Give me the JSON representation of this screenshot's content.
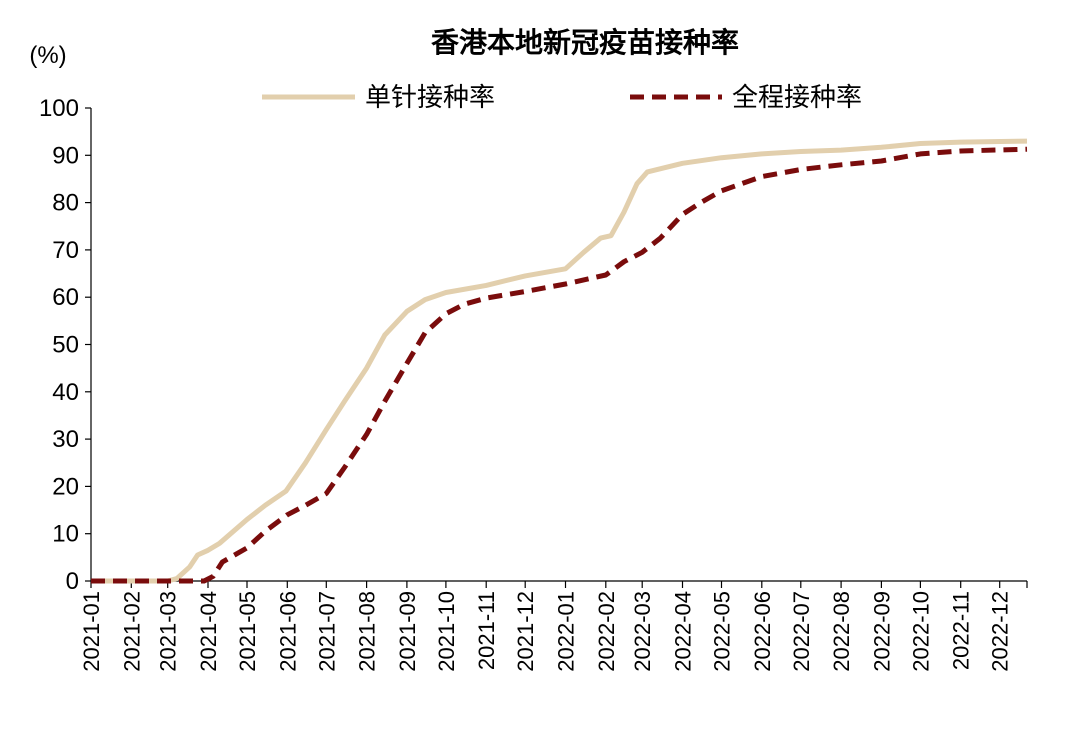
{
  "chart_data": {
    "type": "line",
    "title": "香港本地新冠疫苗接种率",
    "ylabel": "(%)",
    "xlabel": "",
    "ylim": [
      0,
      100
    ],
    "yticks": [
      "0",
      "10",
      "20",
      "30",
      "40",
      "50",
      "60",
      "70",
      "80",
      "90",
      "100"
    ],
    "categories": [
      "2021-01",
      "2021-02",
      "2021-03",
      "2021-04",
      "2021-05",
      "2021-06",
      "2021-07",
      "2021-08",
      "2021-09",
      "2021-10",
      "2021-11",
      "2021-12",
      "2022-01",
      "2022-02",
      "2022-03",
      "2022-04",
      "2022-05",
      "2022-06",
      "2022-07",
      "2022-08",
      "2022-09",
      "2022-10",
      "2022-11",
      "2022-12"
    ],
    "grid": false,
    "legend_position": "top",
    "series": [
      {
        "name": "单针接种率",
        "color": "#E2CFAD",
        "style": "solid",
        "points": [
          [
            "2021-01-01",
            0
          ],
          [
            "2021-02-01",
            0
          ],
          [
            "2021-03-01",
            0
          ],
          [
            "2021-03-08",
            0.5
          ],
          [
            "2021-03-18",
            3
          ],
          [
            "2021-03-24",
            5.5
          ],
          [
            "2021-04-01",
            6.5
          ],
          [
            "2021-04-10",
            8
          ],
          [
            "2021-05-01",
            13
          ],
          [
            "2021-05-15",
            16
          ],
          [
            "2021-05-31",
            19
          ],
          [
            "2021-06-15",
            25
          ],
          [
            "2021-07-01",
            32
          ],
          [
            "2021-07-15",
            38
          ],
          [
            "2021-08-01",
            45
          ],
          [
            "2021-08-15",
            52
          ],
          [
            "2021-09-01",
            57
          ],
          [
            "2021-09-15",
            59.5
          ],
          [
            "2021-10-01",
            61
          ],
          [
            "2021-11-01",
            62.5
          ],
          [
            "2021-12-01",
            64.5
          ],
          [
            "2022-01-01",
            66
          ],
          [
            "2022-01-15",
            69.5
          ],
          [
            "2022-01-28",
            72.5
          ],
          [
            "2022-02-05",
            73
          ],
          [
            "2022-02-15",
            78
          ],
          [
            "2022-02-25",
            84
          ],
          [
            "2022-03-05",
            86.5
          ],
          [
            "2022-04-01",
            88.3
          ],
          [
            "2022-05-01",
            89.5
          ],
          [
            "2022-06-01",
            90.3
          ],
          [
            "2022-07-01",
            90.8
          ],
          [
            "2022-08-01",
            91.1
          ],
          [
            "2022-09-01",
            91.7
          ],
          [
            "2022-10-01",
            92.5
          ],
          [
            "2022-11-01",
            92.8
          ],
          [
            "2022-12-22",
            93
          ]
        ]
      },
      {
        "name": "全程接种率",
        "color": "#7A0C0C",
        "style": "dashed",
        "points": [
          [
            "2021-01-01",
            0
          ],
          [
            "2021-02-01",
            0
          ],
          [
            "2021-03-01",
            0
          ],
          [
            "2021-03-29",
            0
          ],
          [
            "2021-04-05",
            1
          ],
          [
            "2021-04-12",
            4
          ],
          [
            "2021-05-01",
            7
          ],
          [
            "2021-05-15",
            10.5
          ],
          [
            "2021-06-01",
            14
          ],
          [
            "2021-06-15",
            16
          ],
          [
            "2021-07-01",
            18.5
          ],
          [
            "2021-07-15",
            24
          ],
          [
            "2021-08-01",
            31
          ],
          [
            "2021-08-15",
            38
          ],
          [
            "2021-09-01",
            46
          ],
          [
            "2021-09-15",
            52.5
          ],
          [
            "2021-10-01",
            56.5
          ],
          [
            "2021-10-15",
            58.5
          ],
          [
            "2021-11-01",
            59.8
          ],
          [
            "2021-12-01",
            61.2
          ],
          [
            "2022-01-01",
            62.8
          ],
          [
            "2022-02-01",
            64.7
          ],
          [
            "2022-02-15",
            67.5
          ],
          [
            "2022-03-01",
            69.5
          ],
          [
            "2022-03-15",
            72.5
          ],
          [
            "2022-04-01",
            77.5
          ],
          [
            "2022-04-15",
            80
          ],
          [
            "2022-05-01",
            82.5
          ],
          [
            "2022-06-01",
            85.5
          ],
          [
            "2022-07-01",
            87
          ],
          [
            "2022-08-01",
            88
          ],
          [
            "2022-09-01",
            88.8
          ],
          [
            "2022-10-01",
            90.3
          ],
          [
            "2022-11-01",
            90.9
          ],
          [
            "2022-12-22",
            91.3
          ]
        ]
      }
    ]
  }
}
